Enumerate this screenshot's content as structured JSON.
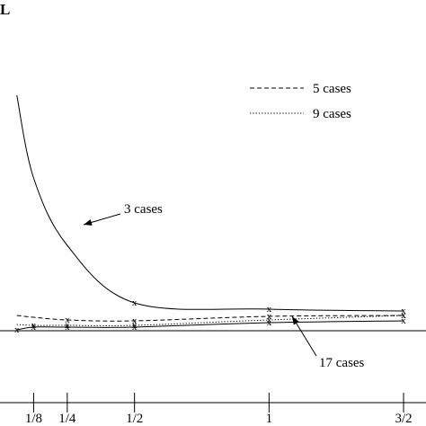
{
  "corner_label": "L",
  "chart_data": {
    "type": "line",
    "title": "",
    "xlabel": "",
    "ylabel": "",
    "x": [
      0.0625,
      0.125,
      0.25,
      0.5,
      1.0,
      1.5
    ],
    "tick_values": [
      0.125,
      0.25,
      0.5,
      1.0,
      1.5
    ],
    "x_tick_labels": [
      "1/8",
      "1/4",
      "1/2",
      "1",
      "3/2"
    ],
    "xlim": [
      0.0,
      1.55
    ],
    "ylim": [
      0.0,
      3.0
    ],
    "grid": false,
    "legend_position": "top-right",
    "series": [
      {
        "name": "3 cases",
        "style": "solid",
        "marked": [
          false,
          false,
          false,
          true,
          true,
          true
        ],
        "values": [
          2.62,
          1.7,
          0.95,
          0.31,
          0.24,
          0.22
        ]
      },
      {
        "name": "5 cases",
        "style": "dashed",
        "marked": [
          false,
          false,
          true,
          true,
          true,
          true
        ],
        "values": [
          0.17,
          0.15,
          0.12,
          0.11,
          0.16,
          0.17
        ]
      },
      {
        "name": "9 cases",
        "style": "dotted",
        "marked": [
          false,
          true,
          true,
          true,
          true,
          true
        ],
        "values": [
          0.07,
          0.06,
          0.06,
          0.06,
          0.12,
          0.17
        ]
      },
      {
        "name": "17 cases",
        "style": "solid",
        "marked": [
          true,
          true,
          true,
          true,
          true,
          true
        ],
        "values": [
          0.01,
          0.04,
          0.04,
          0.04,
          0.09,
          0.11
        ]
      }
    ],
    "legend": [
      {
        "label": "5 cases",
        "style": "dashed"
      },
      {
        "label": "9 cases",
        "style": "dotted"
      }
    ],
    "annotations": [
      {
        "text": "3 cases",
        "points_to": "3 cases"
      },
      {
        "text": "17 cases",
        "points_to": "17 cases"
      }
    ],
    "marker": "x",
    "line_color": "#000000",
    "background_color": "#ffffff"
  }
}
